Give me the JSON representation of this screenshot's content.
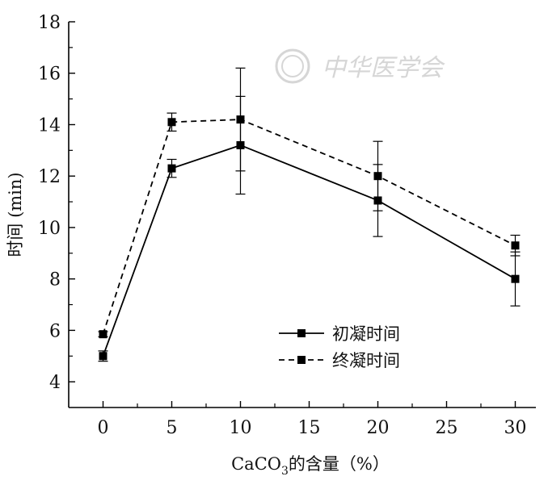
{
  "chart_data": {
    "type": "line",
    "xlabel": "CaCO",
    "xlabel_sub": "3",
    "xlabel_suffix": "的含量（%）",
    "ylabel": "时间 (min)",
    "xlim": [
      -2.5,
      31.5
    ],
    "ylim": [
      3,
      18
    ],
    "x_ticks": [
      0,
      5,
      10,
      15,
      20,
      25,
      30
    ],
    "y_ticks": [
      4,
      6,
      8,
      10,
      12,
      14,
      16,
      18
    ],
    "x": [
      0,
      5,
      10,
      20,
      30
    ],
    "series": [
      {
        "name": "初凝时间",
        "style": "solid",
        "values": [
          5.0,
          12.3,
          13.2,
          11.05,
          8.0
        ],
        "err": [
          0.2,
          0.35,
          1.9,
          1.4,
          1.05
        ]
      },
      {
        "name": "终凝时间",
        "style": "dashed",
        "values": [
          5.85,
          14.1,
          14.2,
          12.0,
          9.3
        ],
        "err": [
          0.1,
          0.35,
          2.0,
          1.35,
          0.4
        ]
      }
    ],
    "legend_position": "lower-center",
    "grid": false
  },
  "watermark": {
    "text": "中华医学会",
    "color": "#d6d6d6"
  }
}
